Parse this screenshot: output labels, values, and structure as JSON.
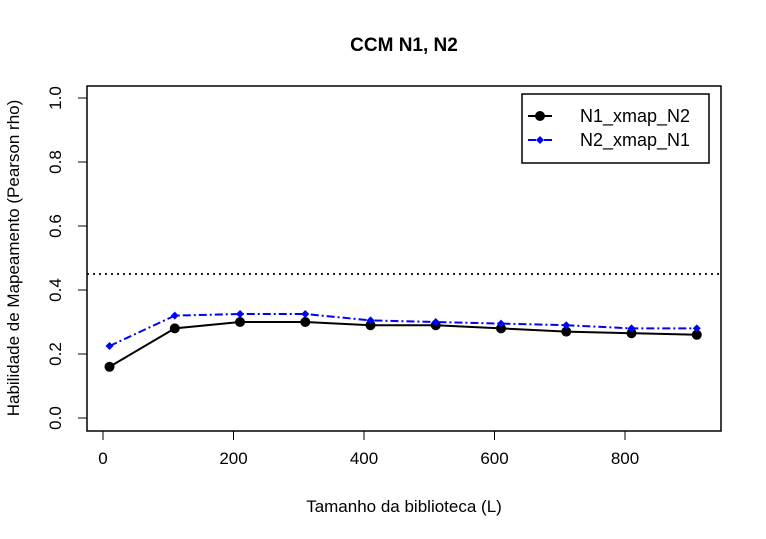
{
  "chart_data": {
    "type": "line",
    "title": "CCM N1, N2",
    "xlabel": "Tamanho da biblioteca (L)",
    "ylabel": "Habilidade de Mapeamento (Pearson rho)",
    "xlim": [
      0,
      900
    ],
    "ylim": [
      0.0,
      1.0
    ],
    "x_ticks": [
      0,
      200,
      400,
      600,
      800
    ],
    "y_ticks": [
      0.0,
      0.2,
      0.4,
      0.6,
      0.8,
      1.0
    ],
    "x_tick_labels": [
      "0",
      "200",
      "400",
      "600",
      "800"
    ],
    "y_tick_labels": [
      "0.0",
      "0.2",
      "0.4",
      "0.6",
      "0.8",
      "1.0"
    ],
    "x": [
      10,
      110,
      210,
      310,
      410,
      510,
      610,
      710,
      810,
      910
    ],
    "series": [
      {
        "name": "N1_xmap_N2",
        "color": "#000000",
        "line_style": "solid",
        "marker": "circle",
        "values": [
          0.16,
          0.28,
          0.3,
          0.3,
          0.29,
          0.29,
          0.28,
          0.27,
          0.265,
          0.26
        ]
      },
      {
        "name": "N2_xmap_N1",
        "color": "#0000ff",
        "line_style": "dashdot",
        "marker": "diamond",
        "values": [
          0.225,
          0.32,
          0.325,
          0.325,
          0.305,
          0.3,
          0.295,
          0.29,
          0.28,
          0.28
        ]
      }
    ],
    "reference_line": {
      "y": 0.45,
      "style": "dotted",
      "color": "#000000"
    },
    "legend_position": "top-right",
    "grid": false
  }
}
